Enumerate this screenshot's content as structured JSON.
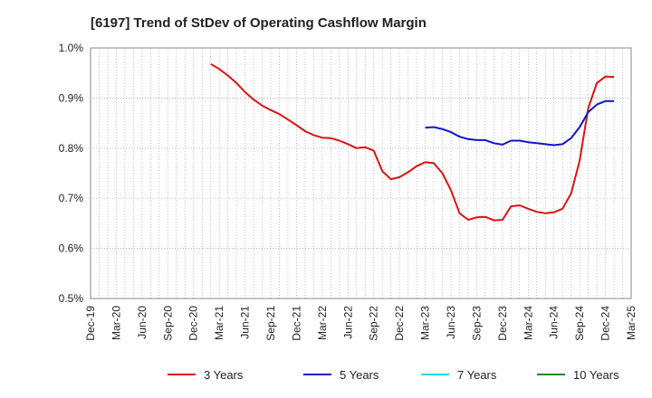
{
  "chart_data": {
    "type": "line",
    "title": "[6197]  Trend of StDev of Operating Cashflow Margin",
    "xlabel": "",
    "ylabel": "",
    "x_ticks": [
      "Dec-19",
      "Mar-20",
      "Jun-20",
      "Sep-20",
      "Dec-20",
      "Mar-21",
      "Jun-21",
      "Sep-21",
      "Dec-21",
      "Mar-22",
      "Jun-22",
      "Sep-22",
      "Dec-22",
      "Mar-23",
      "Jun-23",
      "Sep-23",
      "Dec-23",
      "Mar-24",
      "Jun-24",
      "Sep-24",
      "Dec-24",
      "Mar-25"
    ],
    "y_ticks": [
      "0.5%",
      "0.6%",
      "0.7%",
      "0.8%",
      "0.9%",
      "1.0%"
    ],
    "ylim": [
      0.5,
      1.0
    ],
    "grid": true,
    "legend_position": "bottom",
    "series": [
      {
        "name": "3 Years",
        "color": "#dd1111",
        "points": [
          [
            "Feb-21",
            0.968
          ],
          [
            "Mar-21",
            0.958
          ],
          [
            "Apr-21",
            0.945
          ],
          [
            "May-21",
            0.93
          ],
          [
            "Jun-21",
            0.912
          ],
          [
            "Jul-21",
            0.897
          ],
          [
            "Aug-21",
            0.885
          ],
          [
            "Sep-21",
            0.876
          ],
          [
            "Oct-21",
            0.868
          ],
          [
            "Nov-21",
            0.857
          ],
          [
            "Dec-21",
            0.846
          ],
          [
            "Jan-22",
            0.834
          ],
          [
            "Feb-22",
            0.826
          ],
          [
            "Mar-22",
            0.821
          ],
          [
            "Apr-22",
            0.82
          ],
          [
            "May-22",
            0.815
          ],
          [
            "Jun-22",
            0.808
          ],
          [
            "Jul-22",
            0.8
          ],
          [
            "Aug-22",
            0.802
          ],
          [
            "Sep-22",
            0.795
          ],
          [
            "Oct-22",
            0.754
          ],
          [
            "Nov-22",
            0.738
          ],
          [
            "Dec-22",
            0.742
          ],
          [
            "Jan-23",
            0.752
          ],
          [
            "Feb-23",
            0.764
          ],
          [
            "Mar-23",
            0.772
          ],
          [
            "Apr-23",
            0.77
          ],
          [
            "May-23",
            0.75
          ],
          [
            "Jun-23",
            0.716
          ],
          [
            "Jul-23",
            0.67
          ],
          [
            "Aug-23",
            0.657
          ],
          [
            "Sep-23",
            0.662
          ],
          [
            "Oct-23",
            0.663
          ],
          [
            "Nov-23",
            0.656
          ],
          [
            "Dec-23",
            0.657
          ],
          [
            "Jan-24",
            0.684
          ],
          [
            "Feb-24",
            0.686
          ],
          [
            "Mar-24",
            0.679
          ],
          [
            "Apr-24",
            0.673
          ],
          [
            "May-24",
            0.67
          ],
          [
            "Jun-24",
            0.672
          ],
          [
            "Jul-24",
            0.679
          ],
          [
            "Aug-24",
            0.71
          ],
          [
            "Sep-24",
            0.775
          ],
          [
            "Oct-24",
            0.88
          ],
          [
            "Nov-24",
            0.93
          ],
          [
            "Dec-24",
            0.943
          ],
          [
            "Jan-25",
            0.942
          ]
        ]
      },
      {
        "name": "5 Years",
        "color": "#1111cc",
        "points": [
          [
            "Mar-23",
            0.841
          ],
          [
            "Apr-23",
            0.842
          ],
          [
            "May-23",
            0.838
          ],
          [
            "Jun-23",
            0.832
          ],
          [
            "Jul-23",
            0.823
          ],
          [
            "Aug-23",
            0.818
          ],
          [
            "Sep-23",
            0.816
          ],
          [
            "Oct-23",
            0.816
          ],
          [
            "Nov-23",
            0.81
          ],
          [
            "Dec-23",
            0.807
          ],
          [
            "Jan-24",
            0.815
          ],
          [
            "Feb-24",
            0.815
          ],
          [
            "Mar-24",
            0.812
          ],
          [
            "Apr-24",
            0.81
          ],
          [
            "May-24",
            0.808
          ],
          [
            "Jun-24",
            0.806
          ],
          [
            "Jul-24",
            0.808
          ],
          [
            "Aug-24",
            0.82
          ],
          [
            "Sep-24",
            0.842
          ],
          [
            "Oct-24",
            0.872
          ],
          [
            "Nov-24",
            0.887
          ],
          [
            "Dec-24",
            0.894
          ],
          [
            "Jan-25",
            0.894
          ]
        ]
      },
      {
        "name": "7 Years",
        "color": "#22dddd",
        "points": []
      },
      {
        "name": "10 Years",
        "color": "#228822",
        "points": []
      }
    ]
  }
}
